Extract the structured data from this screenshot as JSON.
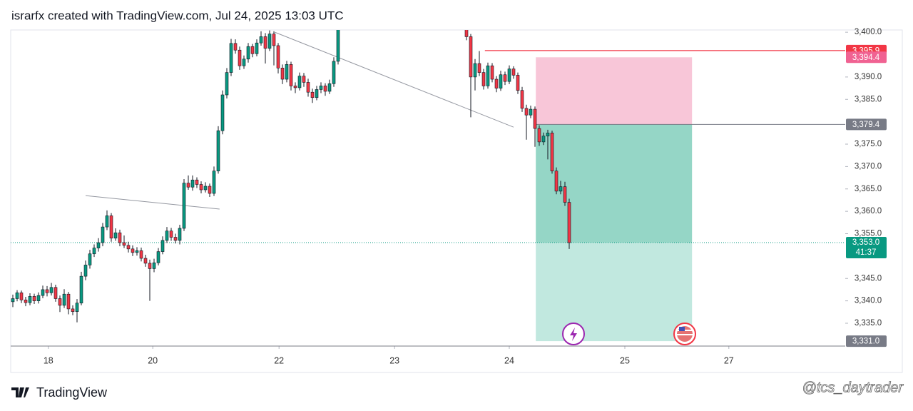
{
  "header": {
    "title": "israrfx created with TradingView.com, Jul 24, 2025 13:03 UTC"
  },
  "footer": {
    "brand": "TradingView",
    "watermark": "@tcs_daytrader"
  },
  "chart_data": {
    "type": "candlestick",
    "up_color": "#089981",
    "down_color": "#f23645",
    "xlim": [
      -0.5,
      194.5
    ],
    "ylim": [
      3329.9,
      3400.5
    ],
    "xticks": [
      {
        "value": 8.3,
        "label": "18"
      },
      {
        "value": 32.7,
        "label": "20"
      },
      {
        "value": 62.2,
        "label": "22"
      },
      {
        "value": 89.2,
        "label": "23"
      },
      {
        "value": 116,
        "label": "24"
      },
      {
        "value": 143,
        "label": "25"
      },
      {
        "value": 167.3,
        "label": "27"
      }
    ],
    "yticks": [
      {
        "value": 3400,
        "label": "3,400.0"
      },
      {
        "value": 3390,
        "label": "3,390.0"
      },
      {
        "value": 3385,
        "label": "3,385.0"
      },
      {
        "value": 3375,
        "label": "3,375.0"
      },
      {
        "value": 3370,
        "label": "3,370.0"
      },
      {
        "value": 3365,
        "label": "3,365.0"
      },
      {
        "value": 3360,
        "label": "3,360.0"
      },
      {
        "value": 3355,
        "label": "3,355.0"
      },
      {
        "value": 3345,
        "label": "3,345.0"
      },
      {
        "value": 3340,
        "label": "3,340.0"
      },
      {
        "value": 3335,
        "label": "3,335.0"
      }
    ],
    "price_labels": [
      {
        "value": 3395.9,
        "label": "3,395.9",
        "color": "#f23645"
      },
      {
        "value": 3394.4,
        "label": "3,394.4",
        "color": "#f06292"
      },
      {
        "value": 3379.4,
        "label": "3,379.4",
        "color": "#787b86"
      },
      {
        "value": 3331.0,
        "label": "3,331.0",
        "color": "#787b86"
      }
    ],
    "current_price": {
      "value": 3353.0,
      "label": "3,353.0",
      "countdown": "41:37",
      "color": "#089981"
    },
    "position": {
      "x_start": 122.2,
      "x_end": 158.7,
      "stop": 3394.4,
      "entry": 3379.4,
      "target": 3331.0
    },
    "horizontal_line": {
      "x_start": 110.3,
      "value": 3395.9,
      "color": "#f23645"
    },
    "trend_lines": [
      {
        "x": [
          17,
          48.3
        ],
        "y": [
          3363.5,
          3360.5
        ]
      },
      {
        "x": [
          61.2,
          117
        ],
        "y": [
          3400,
          3378.8
        ]
      }
    ],
    "x": [
      0,
      1,
      2,
      3,
      4,
      5,
      6,
      7,
      8,
      9,
      10,
      11,
      12,
      13,
      14,
      15,
      16,
      17,
      18,
      19,
      20,
      21,
      22,
      23,
      24,
      25,
      26,
      27,
      28,
      29,
      30,
      31,
      32,
      33,
      34,
      35,
      36,
      37,
      38,
      39,
      40,
      41,
      42,
      43,
      44,
      45,
      46,
      47,
      48,
      49,
      50,
      51,
      52,
      53,
      54,
      55,
      56,
      57,
      58,
      59,
      60,
      61,
      62,
      63,
      64,
      65,
      66,
      67,
      68,
      69,
      70,
      71,
      72,
      73,
      74,
      75,
      76,
      106,
      107,
      108,
      109,
      110,
      111,
      112,
      113,
      114,
      115,
      116,
      117,
      118,
      119,
      120,
      121,
      122,
      123,
      124,
      125,
      126,
      127,
      128,
      129,
      130
    ],
    "candles": [
      [
        3339.8,
        3341.4,
        3338.6,
        3340.5
      ],
      [
        3340.5,
        3342.4,
        3339.9,
        3341.8
      ],
      [
        3341.8,
        3342.3,
        3339.5,
        3340.2
      ],
      [
        3340.2,
        3340.9,
        3338.8,
        3339.6
      ],
      [
        3339.6,
        3341.7,
        3339.0,
        3341.0
      ],
      [
        3341.0,
        3341.6,
        3339.3,
        3340.0
      ],
      [
        3340.0,
        3341.9,
        3339.4,
        3341.2
      ],
      [
        3341.2,
        3343.4,
        3340.6,
        3342.5
      ],
      [
        3342.5,
        3343.3,
        3341.0,
        3341.8
      ],
      [
        3341.8,
        3344.0,
        3341.2,
        3343.0
      ],
      [
        3343.0,
        3343.6,
        3339.8,
        3340.5
      ],
      [
        3340.5,
        3341.2,
        3337.5,
        3339.0
      ],
      [
        3339.0,
        3342.6,
        3338.4,
        3341.5
      ],
      [
        3341.5,
        3342.0,
        3337.0,
        3338.2
      ],
      [
        3338.2,
        3339.0,
        3336.8,
        3337.6
      ],
      [
        3337.6,
        3340.4,
        3335.2,
        3339.5
      ],
      [
        3339.5,
        3346.5,
        3339.0,
        3345.5
      ],
      [
        3345.5,
        3349.0,
        3344.6,
        3348.0
      ],
      [
        3348.0,
        3351.4,
        3347.2,
        3350.5
      ],
      [
        3350.5,
        3352.6,
        3349.8,
        3351.8
      ],
      [
        3351.8,
        3354.0,
        3351.0,
        3353.0
      ],
      [
        3353.0,
        3357.4,
        3352.2,
        3356.5
      ],
      [
        3356.5,
        3360.2,
        3355.8,
        3359.0
      ],
      [
        3359.0,
        3359.6,
        3353.2,
        3354.0
      ],
      [
        3354.0,
        3356.2,
        3353.4,
        3355.2
      ],
      [
        3355.2,
        3355.9,
        3352.2,
        3353.0
      ],
      [
        3353.0,
        3354.6,
        3351.8,
        3352.4
      ],
      [
        3352.4,
        3353.2,
        3350.8,
        3351.6
      ],
      [
        3351.6,
        3352.4,
        3350.0,
        3350.8
      ],
      [
        3350.8,
        3352.0,
        3350.1,
        3351.2
      ],
      [
        3351.2,
        3351.9,
        3348.8,
        3349.5
      ],
      [
        3349.5,
        3350.3,
        3347.6,
        3348.4
      ],
      [
        3348.4,
        3349.2,
        3340.0,
        3347.2
      ],
      [
        3347.2,
        3349.4,
        3346.4,
        3348.5
      ],
      [
        3348.5,
        3351.8,
        3347.9,
        3351.0
      ],
      [
        3351.0,
        3354.4,
        3350.4,
        3353.5
      ],
      [
        3353.5,
        3356.5,
        3352.9,
        3355.6
      ],
      [
        3355.6,
        3356.3,
        3353.4,
        3354.2
      ],
      [
        3354.2,
        3355.0,
        3352.8,
        3353.5
      ],
      [
        3353.5,
        3357.0,
        3352.6,
        3356.2
      ],
      [
        3356.2,
        3367.2,
        3355.6,
        3366.3
      ],
      [
        3366.3,
        3368.0,
        3364.8,
        3365.4
      ],
      [
        3365.4,
        3368.0,
        3364.6,
        3367.0
      ],
      [
        3367.0,
        3367.6,
        3365.2,
        3366.0
      ],
      [
        3366.0,
        3366.7,
        3364.0,
        3364.8
      ],
      [
        3364.8,
        3366.5,
        3364.2,
        3365.6
      ],
      [
        3365.6,
        3366.2,
        3363.2,
        3364.0
      ],
      [
        3364.0,
        3370.0,
        3363.4,
        3369.0
      ],
      [
        3369.0,
        3379.0,
        3368.4,
        3378.0
      ],
      [
        3378.0,
        3387.0,
        3377.2,
        3386.0
      ],
      [
        3386.0,
        3392.0,
        3385.2,
        3391.0
      ],
      [
        3391.0,
        3398.5,
        3390.2,
        3397.5
      ],
      [
        3397.5,
        3398.4,
        3395.2,
        3396.0
      ],
      [
        3396.0,
        3396.8,
        3391.6,
        3392.5
      ],
      [
        3392.5,
        3394.8,
        3391.8,
        3394.0
      ],
      [
        3394.0,
        3397.6,
        3393.2,
        3396.8
      ],
      [
        3396.8,
        3397.4,
        3394.4,
        3395.2
      ],
      [
        3395.2,
        3398.4,
        3394.6,
        3397.6
      ],
      [
        3397.6,
        3400.2,
        3397.0,
        3399.0
      ],
      [
        3399.0,
        3399.8,
        3393.0,
        3396.4
      ],
      [
        3396.4,
        3400.4,
        3395.8,
        3399.6
      ],
      [
        3399.6,
        3400.2,
        3392.6,
        3397.0
      ],
      [
        3397.0,
        3397.6,
        3390.8,
        3392.0
      ],
      [
        3392.0,
        3392.8,
        3388.4,
        3389.5
      ],
      [
        3389.5,
        3393.6,
        3388.8,
        3392.8
      ],
      [
        3392.8,
        3393.4,
        3387.0,
        3388.0
      ],
      [
        3388.0,
        3388.8,
        3386.4,
        3387.6
      ],
      [
        3387.6,
        3391.0,
        3387.0,
        3390.2
      ],
      [
        3390.2,
        3390.9,
        3387.8,
        3388.8
      ],
      [
        3388.8,
        3389.6,
        3385.6,
        3386.6
      ],
      [
        3386.6,
        3387.4,
        3384.2,
        3385.4
      ],
      [
        3385.4,
        3388.0,
        3384.8,
        3387.2
      ],
      [
        3387.2,
        3388.8,
        3386.4,
        3388.0
      ],
      [
        3388.0,
        3388.6,
        3385.8,
        3386.8
      ],
      [
        3386.8,
        3389.4,
        3386.2,
        3388.5
      ],
      [
        3388.5,
        3394.4,
        3387.8,
        3393.5
      ],
      [
        3393.5,
        3404.5,
        3392.8,
        3403.5
      ],
      [
        3401.5,
        3402.2,
        3398.2,
        3399.0
      ],
      [
        3399.0,
        3399.6,
        3381.0,
        3390.0
      ],
      [
        3390.0,
        3394.0,
        3387.0,
        3393.0
      ],
      [
        3393.0,
        3395.8,
        3390.2,
        3391.0
      ],
      [
        3391.0,
        3391.8,
        3387.2,
        3388.0
      ],
      [
        3388.0,
        3393.2,
        3387.4,
        3392.5
      ],
      [
        3392.5,
        3393.1,
        3388.8,
        3389.5
      ],
      [
        3389.5,
        3390.2,
        3386.6,
        3387.5
      ],
      [
        3387.5,
        3391.4,
        3386.9,
        3390.5
      ],
      [
        3390.5,
        3391.2,
        3388.2,
        3389.0
      ],
      [
        3389.0,
        3392.6,
        3388.4,
        3391.8
      ],
      [
        3391.8,
        3392.4,
        3389.6,
        3390.4
      ],
      [
        3390.4,
        3391.0,
        3386.2,
        3387.0
      ],
      [
        3387.0,
        3387.8,
        3382.2,
        3383.0
      ],
      [
        3383.0,
        3383.8,
        3376.0,
        3381.5
      ],
      [
        3381.5,
        3383.6,
        3380.8,
        3382.8
      ],
      [
        3382.8,
        3383.4,
        3374.4,
        3378.5
      ],
      [
        3378.5,
        3379.2,
        3374.6,
        3375.5
      ],
      [
        3375.5,
        3377.6,
        3374.8,
        3376.8
      ],
      [
        3376.8,
        3378.2,
        3371.6,
        3377.5
      ],
      [
        3377.5,
        3378.0,
        3368.4,
        3369.0
      ],
      [
        3369.0,
        3369.8,
        3363.8,
        3364.5
      ],
      [
        3364.5,
        3366.8,
        3363.8,
        3365.5
      ],
      [
        3365.5,
        3366.6,
        3361.2,
        3362.0
      ],
      [
        3362.0,
        3362.8,
        3351.6,
        3353.0
      ]
    ]
  }
}
